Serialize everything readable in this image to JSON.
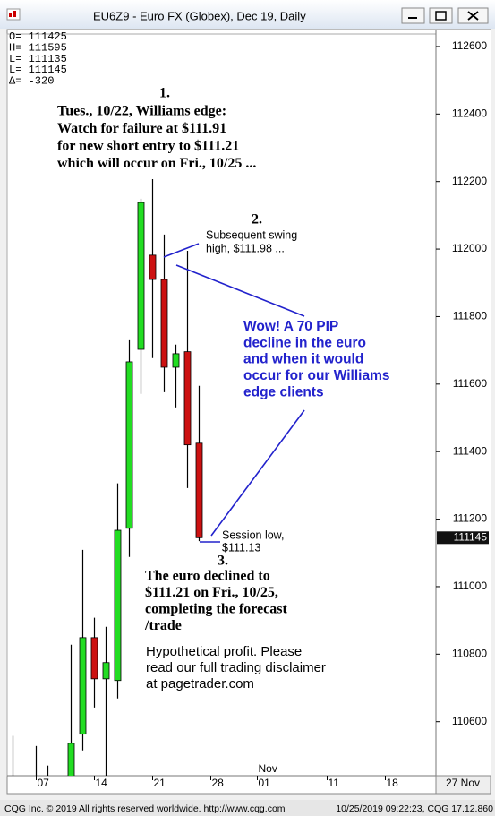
{
  "chart_data": {
    "type": "candlestick",
    "title": "EU6Z9 - Euro FX (Globex), Dec 19, Daily",
    "header_lines": [
      "O=  111425",
      "H=  111595",
      "L=  111135",
      "L=  111145",
      "Δ=     -320"
    ],
    "categories": [
      null,
      null,
      "07",
      null,
      null,
      null,
      null,
      "14",
      null,
      null,
      null,
      null,
      "21",
      null,
      null,
      null,
      null,
      "28",
      null,
      null,
      null,
      "01",
      null,
      null,
      null,
      null,
      null,
      "11",
      null,
      null,
      null,
      null,
      "18",
      null,
      null,
      null,
      null
    ],
    "month_label": "Nov",
    "corner_label": "27 Nov",
    "open": [
      110420,
      null,
      110420,
      110420,
      null,
      110400,
      110563,
      110849,
      110727,
      110722,
      111173,
      111703,
      111982,
      111910,
      111650,
      111696,
      111425,
      null,
      null,
      null,
      null,
      null,
      null,
      null,
      null,
      null,
      null,
      null,
      null,
      null,
      null,
      null,
      null,
      null,
      null,
      null,
      null
    ],
    "high": [
      110558,
      null,
      110528,
      110470,
      null,
      110828,
      111109,
      110908,
      110881,
      111306,
      111730,
      112149,
      112207,
      112043,
      111717,
      111995,
      111595,
      null,
      null,
      null,
      null,
      null,
      null,
      null,
      null,
      null,
      null,
      null,
      null,
      null,
      null,
      null,
      null,
      null,
      null,
      null,
      null
    ],
    "low": [
      110400,
      null,
      110400,
      110400,
      null,
      110380,
      110515,
      110642,
      110420,
      110669,
      111088,
      111571,
      111677,
      111576,
      111531,
      111292,
      111135,
      null,
      null,
      null,
      null,
      null,
      null,
      null,
      null,
      null,
      null,
      null,
      null,
      null,
      null,
      null,
      null,
      null,
      null,
      null,
      null
    ],
    "close": [
      110430,
      null,
      110430,
      110430,
      null,
      110536,
      110849,
      110727,
      110775,
      111167,
      111666,
      112138,
      111910,
      111650,
      111690,
      111420,
      111145,
      null,
      null,
      null,
      null,
      null,
      null,
      null,
      null,
      null,
      null,
      null,
      null,
      null,
      null,
      null,
      null,
      null,
      null,
      null,
      null
    ],
    "up_color": "#22dd22",
    "down_color": "#cc1111",
    "ylim": [
      110440,
      112637
    ],
    "yticks": [
      110600,
      110800,
      111000,
      111200,
      111400,
      111600,
      111800,
      112000,
      112200,
      112400,
      112600
    ],
    "last_price_label": "111145",
    "annotations": [
      {
        "lines": [
          "1."
        ]
      },
      {
        "lines": [
          "Tues., 10/22, Williams edge:",
          "Watch for failure at $111.91",
          "for new short entry to $111.21",
          "which will occur on Fri., 10/25 ..."
        ]
      },
      {
        "lines": [
          "2."
        ]
      },
      {
        "lines": [
          "Subsequent swing",
          "high, $111.98 ..."
        ]
      },
      {
        "lines": [
          "Wow!  A 70 PIP",
          "decline in the euro",
          "and when it would",
          "occur for our Williams",
          "edge clients"
        ]
      },
      {
        "lines": [
          "Session low,",
          "$111.13"
        ]
      },
      {
        "lines": [
          "3."
        ]
      },
      {
        "lines": [
          "The euro declined to",
          "$111.21 on Fri., 10/25,",
          "completing the forecast",
          "/trade"
        ]
      },
      {
        "lines": [
          "Hypothetical profit.  Please",
          "read our full trading disclaimer",
          "at pagetrader.com"
        ]
      }
    ]
  },
  "footer": {
    "left": "CQG Inc. © 2019 All rights reserved worldwide. http://www.cqg.com",
    "right": "10/25/2019 09:22:23, CQG 17.12.860"
  }
}
